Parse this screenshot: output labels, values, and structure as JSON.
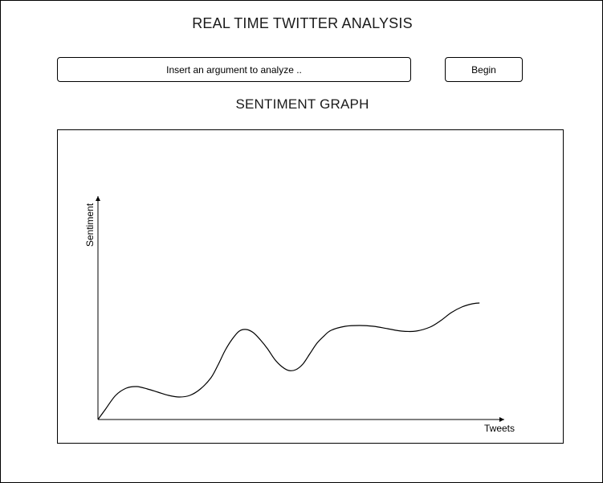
{
  "header": {
    "title": "REAL TIME TWITTER ANALYSIS"
  },
  "search": {
    "placeholder": "Insert an argument to analyze ..",
    "value": ""
  },
  "actions": {
    "begin_label": "Begin"
  },
  "graph": {
    "title": "SENTIMENT GRAPH"
  },
  "chart_data": {
    "type": "line",
    "xlabel": "Tweets",
    "ylabel": "Sentiment",
    "grid": false,
    "series": [
      {
        "name": "",
        "points": [
          [
            0,
            0
          ],
          [
            4,
            12
          ],
          [
            10,
            30
          ],
          [
            16,
            39
          ],
          [
            22,
            41
          ],
          [
            28,
            38
          ],
          [
            34,
            34
          ],
          [
            40,
            30
          ],
          [
            46,
            28
          ],
          [
            52,
            30
          ],
          [
            58,
            38
          ],
          [
            64,
            52
          ],
          [
            68,
            68
          ],
          [
            72,
            86
          ],
          [
            76,
            100
          ],
          [
            80,
            110
          ],
          [
            84,
            112
          ],
          [
            88,
            108
          ],
          [
            92,
            99
          ],
          [
            96,
            88
          ],
          [
            100,
            75
          ],
          [
            104,
            66
          ],
          [
            108,
            61
          ],
          [
            112,
            62
          ],
          [
            116,
            69
          ],
          [
            120,
            82
          ],
          [
            124,
            95
          ],
          [
            128,
            104
          ],
          [
            132,
            111
          ],
          [
            140,
            116
          ],
          [
            148,
            117
          ],
          [
            156,
            116
          ],
          [
            164,
            113
          ],
          [
            172,
            110
          ],
          [
            180,
            110
          ],
          [
            188,
            115
          ],
          [
            194,
            123
          ],
          [
            200,
            133
          ],
          [
            206,
            140
          ],
          [
            212,
            144
          ],
          [
            216,
            145
          ]
        ]
      }
    ]
  }
}
